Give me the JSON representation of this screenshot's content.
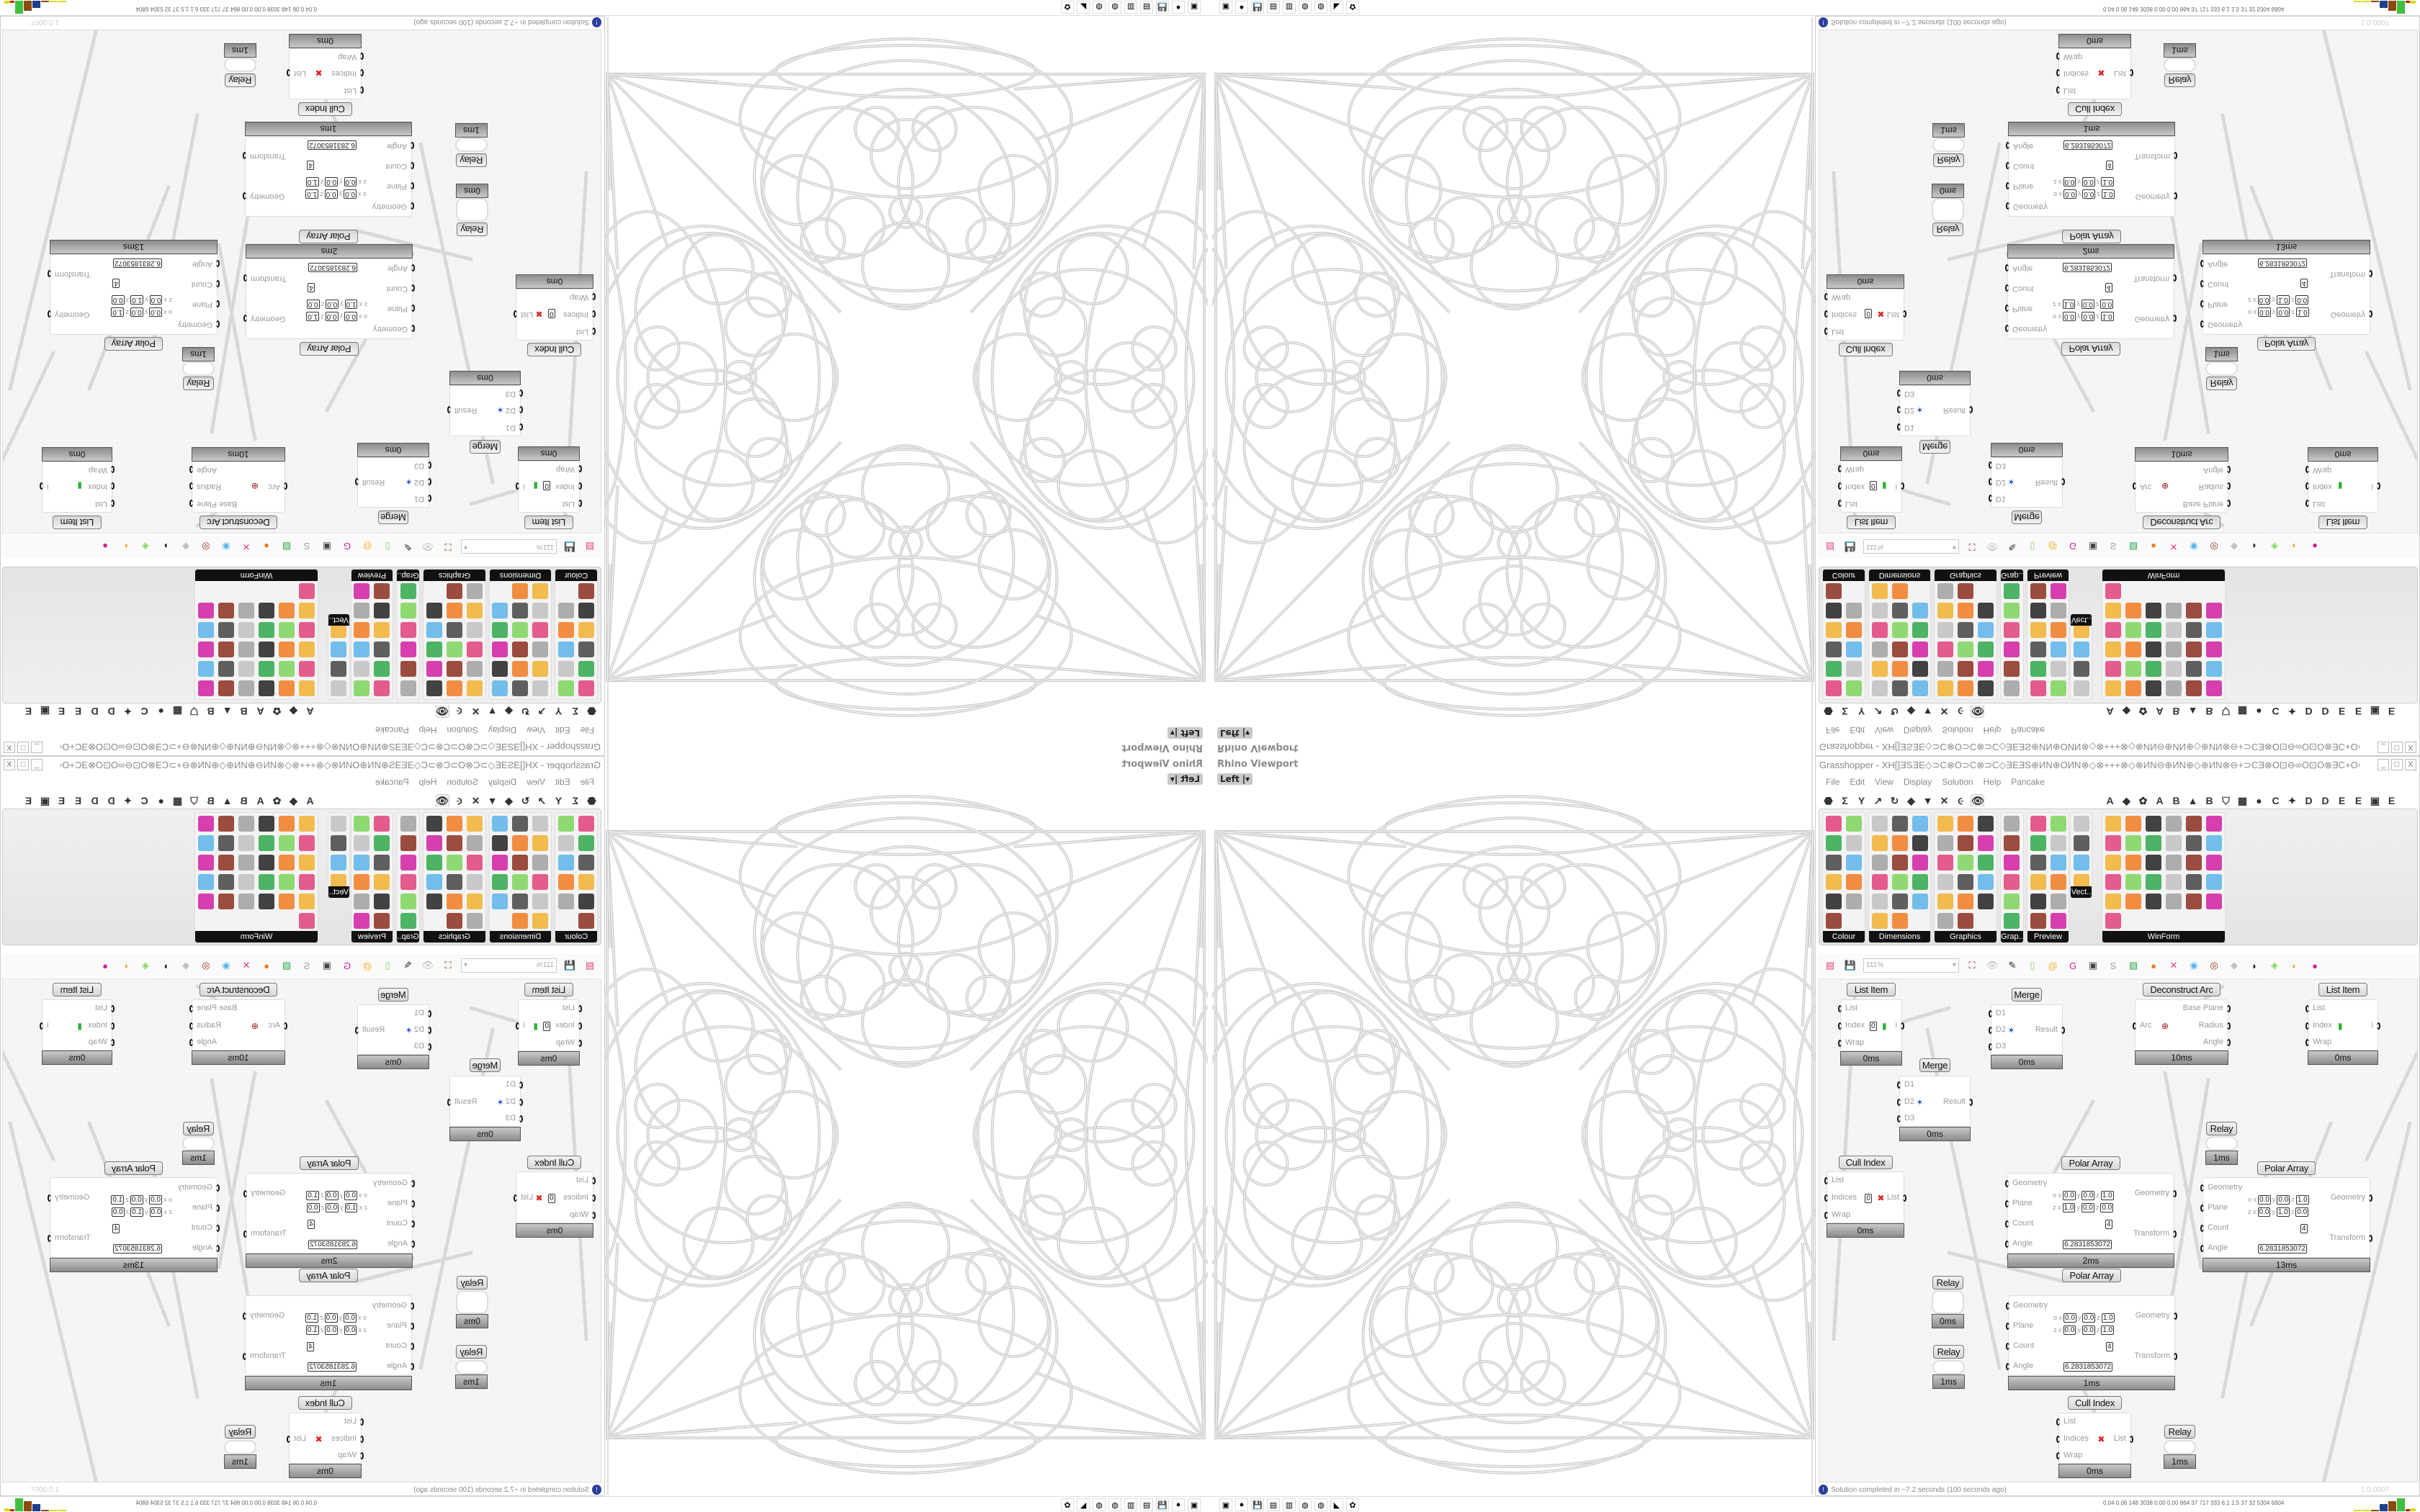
{
  "viewport": {
    "title": "Rhino Viewport",
    "view": "Left",
    "dropdown_icon": "caret-down-icon"
  },
  "grasshopper": {
    "title": "Grasshopper - XH[]ƎSƎE◇⊃C⊗O⊃C⊗⊃C◇ƎEƎS⊕ИN⊕OИN⊗◇⊗+++⊗◇⊗ИN⊖⊕ИN⊕◇⊕ИN⊗⊖+⊃CƎ⊗O⊡⊖∞O⊡O⊗ƎC+O⊗ИN+◇⊕ƎE⊗ƎE⊞+ƎS+⊞ƎE⊗ƎE⊕◇⊕⊗⊡ƎE⊕+⊃C...",
    "window_buttons": [
      "_",
      "□",
      "X"
    ],
    "menu": [
      "File",
      "Edit",
      "View",
      "Display",
      "Solution",
      "Help",
      "Pancake"
    ],
    "tabs": [
      "⬣",
      "Σ",
      "Y",
      "↗",
      "↻",
      "◆",
      "▼",
      "✕",
      "૯",
      "👁",
      "",
      "",
      "",
      "",
      "",
      "",
      "",
      "A",
      "◆",
      "✿",
      "A",
      "B",
      "▲",
      "B",
      "⛉",
      "▦",
      "●",
      "C",
      "✦",
      "D",
      "D",
      "E",
      "E",
      "▣",
      "E"
    ],
    "selected_tab": 9,
    "panels": [
      {
        "label": "Colour",
        "cols": 2,
        "count": 11
      },
      {
        "label": "Dimensions",
        "cols": 3,
        "count": 17
      },
      {
        "label": "Graphics",
        "cols": 3,
        "count": 17
      },
      {
        "label": "Grap..",
        "cols": 1,
        "count": 6
      },
      {
        "label": "Preview",
        "cols": 2,
        "count": 12
      },
      {
        "label": "Vect..",
        "cols": 1,
        "count": 4
      },
      {
        "label": "WinForm",
        "cols": 6,
        "count": 31
      }
    ],
    "icon_palette": [
      "#e0407a",
      "#5bb3e8",
      "#8b2e1d",
      "#c0c0c0",
      "#222222",
      "#7dd35a",
      "#f0b030",
      "#d01fa0",
      "#444444",
      "#a0a0a0",
      "#2ea84a",
      "#f07a20"
    ],
    "zoom": "111%",
    "toolbar_icons": [
      "new-document-icon",
      "save-icon",
      "zoom-extents-icon",
      "preview-eye-icon",
      "sketch-icon",
      "bake-icon",
      "email-icon",
      "gha-icon",
      "cluster-icon",
      "search-icon",
      "package-icon",
      "bulb-icon",
      "wire-display-icon",
      "cap-icon",
      "mesh-icon",
      "red-gem-icon",
      "teal-icon",
      "green-icon",
      "sphere-icon",
      "blue-ball-icon"
    ],
    "toolbar_glyphs": [
      "▤",
      "💾",
      "⛶",
      "👁",
      "✎",
      "▯",
      "@",
      "G",
      "▣",
      "S",
      "▧",
      "●",
      "✕",
      "◉",
      "◎",
      "◆",
      "◗",
      "◈",
      "◐",
      "●"
    ],
    "nodes": [
      {
        "title": "List Item",
        "time": "0ms",
        "inputs": [
          "List",
          "Index",
          "Wrap"
        ],
        "outputs": [
          "i"
        ],
        "values": {
          "Index": "0"
        }
      },
      {
        "title": "Merge",
        "time": "0ms",
        "inputs": [
          "D1",
          "D2",
          "D3"
        ],
        "outputs": [
          "Result"
        ]
      },
      {
        "title": "Deconstruct Arc",
        "time": "10ms",
        "inputs": [
          "Arc"
        ],
        "outputs": [
          "Base Plane",
          "Radius",
          "Angle"
        ]
      },
      {
        "title": "List Item",
        "time": "0ms",
        "inputs": [
          "List",
          "Index",
          "Wrap"
        ],
        "outputs": [
          "i"
        ]
      },
      {
        "title": "Merge",
        "time": "0ms",
        "inputs": [
          "D1",
          "D2",
          "D3"
        ],
        "outputs": [
          "Result"
        ]
      },
      {
        "title": "Relay",
        "time": "1ms"
      },
      {
        "title": "Cull Index",
        "time": "0ms",
        "inputs": [
          "List",
          "Indices",
          "Wrap"
        ],
        "outputs": [
          "List"
        ],
        "values": {
          "Indices": "0"
        }
      },
      {
        "title": "Polar Array",
        "time": "2ms",
        "inputs": [
          "Geometry",
          "Plane",
          "Count",
          "Angle"
        ],
        "outputs": [
          "Geometry",
          "Transform"
        ],
        "plane": {
          "o": [
            "0.0",
            "0.0",
            "1.0"
          ],
          "z": [
            "1.0",
            "0.0",
            "0.0"
          ]
        },
        "count": "4",
        "angle": "6.2831853072"
      },
      {
        "title": "Polar Array",
        "time": "13ms",
        "inputs": [
          "Geometry",
          "Plane",
          "Count",
          "Angle"
        ],
        "outputs": [
          "Geometry",
          "Transform"
        ],
        "plane": {
          "o": [
            "0.0",
            "0.0",
            "1.0"
          ],
          "z": [
            "0.0",
            "1.0",
            "0.0"
          ]
        },
        "count": "4",
        "angle": "6.2831853072"
      },
      {
        "title": "Polar Array",
        "time": "1ms",
        "inputs": [
          "Geometry",
          "Plane",
          "Count",
          "Angle"
        ],
        "outputs": [
          "Geometry",
          "Transform"
        ],
        "plane": {
          "o": [
            "0.0",
            "0.0",
            "1.0"
          ],
          "z": [
            "0.0",
            "0.0",
            "1.0"
          ]
        },
        "count": "4",
        "angle": "6.2831853072"
      },
      {
        "title": "Relay",
        "time": "0ms"
      },
      {
        "title": "Relay",
        "time": "1ms"
      },
      {
        "title": "Cull Index",
        "time": "0ms",
        "inputs": [
          "List",
          "Indices",
          "Wrap"
        ],
        "outputs": [
          "List"
        ]
      },
      {
        "title": "Relay",
        "time": "1ms"
      }
    ],
    "status": "Solution completed in ~7.2 seconds (100 seconds ago)",
    "version": "1.0.0007"
  },
  "taskbar": {
    "icons": [
      "terminal-icon",
      "firefox-icon",
      "floppy-64-icon",
      "document-icon",
      "notepad-icon",
      "rhino-icon",
      "rhino-icon-2",
      "inkscape-icon",
      "red-app-icon"
    ],
    "glyphs": [
      "▣",
      "●",
      "💾",
      "▤",
      "▥",
      "◍",
      "◍",
      "◣",
      "✿"
    ],
    "stats": "0.04 0.06 148 3038 0.00 0.00 864 37 717 333 6.1 1.5 37 32 5304 6804",
    "bar_colors": [
      "#d8d820",
      "#d8d820",
      "#8b4a10",
      "#1e3f8a",
      "#8b4a10",
      "#40c040",
      "#c02020"
    ]
  }
}
